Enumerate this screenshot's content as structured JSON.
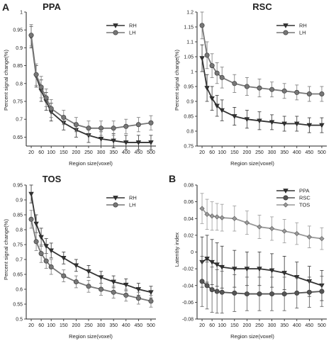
{
  "figure": {
    "panel_letters": [
      "A",
      "B"
    ]
  },
  "chart_data": [
    {
      "type": "line",
      "title": "PPA",
      "xlabel": "Region size(voxel)",
      "ylabel": "Percent signal change(%)",
      "x": [
        20,
        40,
        60,
        80,
        100,
        150,
        200,
        250,
        300,
        350,
        400,
        450,
        500
      ],
      "xticks": [
        20,
        60,
        100,
        150,
        200,
        250,
        300,
        350,
        400,
        450,
        500
      ],
      "xlim": [
        0,
        520
      ],
      "ylim": [
        0.625,
        1.0
      ],
      "yticks": [
        0.65,
        0.7,
        0.75,
        0.8,
        0.85,
        0.9,
        0.95,
        1.0
      ],
      "ytick_labels": [
        "0.65",
        "0.7",
        "0.75",
        "0.8",
        "0.85",
        "0.9",
        "0.95",
        "1"
      ],
      "legend_position": "top-right",
      "series": [
        {
          "name": "RH",
          "marker": "down-triangle",
          "color": "#333333",
          "values": [
            0.93,
            0.82,
            0.78,
            0.75,
            0.72,
            0.69,
            0.67,
            0.655,
            0.645,
            0.64,
            0.635,
            0.635,
            0.635
          ],
          "errors": [
            0.03,
            0.03,
            0.03,
            0.025,
            0.025,
            0.02,
            0.02,
            0.02,
            0.02,
            0.02,
            0.02,
            0.02,
            0.02
          ]
        },
        {
          "name": "LH",
          "marker": "circle",
          "color": "#777777",
          "values": [
            0.935,
            0.825,
            0.79,
            0.76,
            0.73,
            0.705,
            0.685,
            0.675,
            0.675,
            0.675,
            0.68,
            0.685,
            0.69
          ],
          "errors": [
            0.03,
            0.03,
            0.03,
            0.025,
            0.025,
            0.02,
            0.02,
            0.02,
            0.02,
            0.02,
            0.02,
            0.02,
            0.02
          ]
        }
      ]
    },
    {
      "type": "line",
      "title": "RSC",
      "xlabel": "Region size(voxel)",
      "ylabel": "Percent signal change(%)",
      "x": [
        20,
        40,
        60,
        80,
        100,
        150,
        200,
        250,
        300,
        350,
        400,
        450,
        500
      ],
      "xticks": [
        20,
        60,
        100,
        150,
        200,
        250,
        300,
        350,
        400,
        450,
        500
      ],
      "xlim": [
        0,
        520
      ],
      "ylim": [
        0.75,
        1.2
      ],
      "yticks": [
        0.75,
        0.8,
        0.85,
        0.9,
        0.95,
        1.0,
        1.05,
        1.1,
        1.15,
        1.2
      ],
      "ytick_labels": [
        "0.75",
        "0.8",
        "0.85",
        "0.9",
        "0.95",
        "1",
        "1.05",
        "1.1",
        "1.15",
        "1.2"
      ],
      "legend_position": "top-right",
      "series": [
        {
          "name": "RH",
          "marker": "down-triangle",
          "color": "#333333",
          "values": [
            1.045,
            0.945,
            0.91,
            0.885,
            0.87,
            0.85,
            0.84,
            0.835,
            0.83,
            0.825,
            0.825,
            0.82,
            0.82
          ],
          "errors": [
            0.045,
            0.045,
            0.04,
            0.035,
            0.035,
            0.03,
            0.03,
            0.03,
            0.025,
            0.025,
            0.025,
            0.025,
            0.025
          ]
        },
        {
          "name": "LH",
          "marker": "circle",
          "color": "#777777",
          "values": [
            1.155,
            1.055,
            1.02,
            0.995,
            0.98,
            0.96,
            0.95,
            0.945,
            0.94,
            0.935,
            0.93,
            0.925,
            0.925
          ],
          "errors": [
            0.045,
            0.045,
            0.04,
            0.035,
            0.035,
            0.03,
            0.03,
            0.03,
            0.025,
            0.025,
            0.025,
            0.025,
            0.025
          ]
        }
      ]
    },
    {
      "type": "line",
      "title": "TOS",
      "xlabel": "Region size(voxel)",
      "ylabel": "Percent signal change(%)",
      "x": [
        20,
        40,
        60,
        80,
        100,
        150,
        200,
        250,
        300,
        350,
        400,
        450,
        500
      ],
      "xticks": [
        20,
        60,
        100,
        150,
        200,
        250,
        300,
        350,
        400,
        450,
        500
      ],
      "xlim": [
        0,
        520
      ],
      "ylim": [
        0.5,
        0.95
      ],
      "yticks": [
        0.5,
        0.55,
        0.6,
        0.65,
        0.7,
        0.75,
        0.8,
        0.85,
        0.9,
        0.95
      ],
      "ytick_labels": [
        "0.5",
        "0.55",
        "0.6",
        "0.65",
        "0.7",
        "0.75",
        "0.8",
        "0.85",
        "0.9",
        "0.95"
      ],
      "legend_position": "top-right",
      "series": [
        {
          "name": "RH",
          "marker": "down-triangle",
          "color": "#333333",
          "values": [
            0.92,
            0.82,
            0.775,
            0.745,
            0.73,
            0.705,
            0.68,
            0.66,
            0.64,
            0.625,
            0.615,
            0.6,
            0.59
          ],
          "errors": [
            0.03,
            0.03,
            0.03,
            0.025,
            0.025,
            0.02,
            0.02,
            0.02,
            0.02,
            0.02,
            0.02,
            0.02,
            0.02
          ]
        },
        {
          "name": "LH",
          "marker": "circle",
          "color": "#777777",
          "values": [
            0.835,
            0.76,
            0.72,
            0.695,
            0.675,
            0.645,
            0.625,
            0.61,
            0.6,
            0.59,
            0.58,
            0.57,
            0.56
          ],
          "errors": [
            0.03,
            0.03,
            0.03,
            0.025,
            0.025,
            0.02,
            0.02,
            0.02,
            0.02,
            0.02,
            0.02,
            0.02,
            0.02
          ]
        }
      ]
    },
    {
      "type": "line",
      "title": "",
      "xlabel": "Region size(voxel)",
      "ylabel": "Latentity index",
      "x": [
        20,
        40,
        60,
        80,
        100,
        150,
        200,
        250,
        300,
        350,
        400,
        450,
        500
      ],
      "xticks": [
        20,
        60,
        100,
        150,
        200,
        250,
        300,
        350,
        400,
        450,
        500
      ],
      "xlim": [
        0,
        520
      ],
      "ylim": [
        -0.08,
        0.08
      ],
      "yticks": [
        -0.08,
        -0.06,
        -0.04,
        -0.02,
        0,
        0.02,
        0.04,
        0.06,
        0.08
      ],
      "ytick_labels": [
        "-0.08",
        "-0.06",
        "-0.04",
        "-0.02",
        "0",
        "0.02",
        "0.04",
        "0.06",
        "0.08"
      ],
      "legend_position": "top-right",
      "series": [
        {
          "name": "PPA",
          "marker": "down-triangle",
          "color": "#333333",
          "values": [
            -0.012,
            -0.008,
            -0.012,
            -0.015,
            -0.018,
            -0.02,
            -0.02,
            -0.02,
            -0.022,
            -0.025,
            -0.03,
            -0.035,
            -0.04
          ],
          "errors": [
            0.03,
            0.028,
            0.027,
            0.026,
            0.025,
            0.022,
            0.02,
            0.02,
            0.02,
            0.02,
            0.018,
            0.018,
            0.018
          ]
        },
        {
          "name": "RSC",
          "marker": "circle",
          "color": "#555555",
          "values": [
            -0.035,
            -0.04,
            -0.045,
            -0.047,
            -0.048,
            -0.049,
            -0.05,
            -0.05,
            -0.05,
            -0.05,
            -0.049,
            -0.048,
            -0.047
          ],
          "errors": [
            0.03,
            0.028,
            0.027,
            0.026,
            0.025,
            0.022,
            0.02,
            0.02,
            0.02,
            0.02,
            0.018,
            0.018,
            0.018
          ]
        },
        {
          "name": "TOS",
          "marker": "diamond",
          "color": "#999999",
          "values": [
            0.052,
            0.045,
            0.043,
            0.042,
            0.041,
            0.04,
            0.035,
            0.03,
            0.028,
            0.025,
            0.022,
            0.018,
            0.016
          ],
          "errors": [
            0.018,
            0.018,
            0.017,
            0.016,
            0.016,
            0.015,
            0.014,
            0.014,
            0.014,
            0.014,
            0.013,
            0.013,
            0.013
          ]
        }
      ]
    }
  ]
}
